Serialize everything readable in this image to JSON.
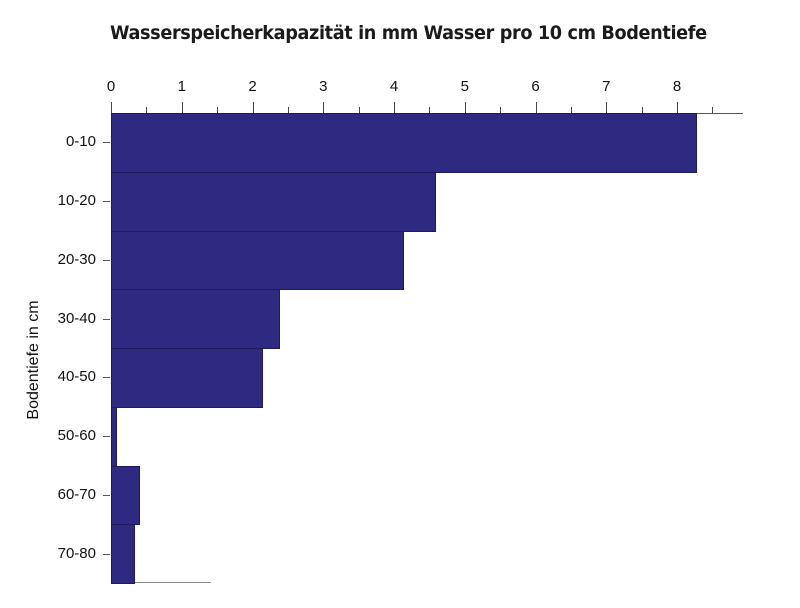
{
  "chart_data": {
    "type": "bar",
    "orientation": "horizontal",
    "title": "Wasserspeicherkapazität in mm Wasser pro 10 cm Bodentiefe",
    "xlabel": "",
    "ylabel": "Bodentiefe in cm",
    "xlim": [
      0,
      9
    ],
    "x_ticks": [
      "0",
      "1",
      "2",
      "3",
      "4",
      "5",
      "6",
      "7",
      "8"
    ],
    "x_axis_position": "top",
    "grid": false,
    "legend": null,
    "categories": [
      "0-10",
      "10-20",
      "20-30",
      "30-40",
      "40-50",
      "50-60",
      "60-70",
      "70-80"
    ],
    "values": [
      8.28,
      4.59,
      4.14,
      2.39,
      2.15,
      0.08,
      0.41,
      0.34
    ],
    "bar_color": "#2e2a82"
  }
}
